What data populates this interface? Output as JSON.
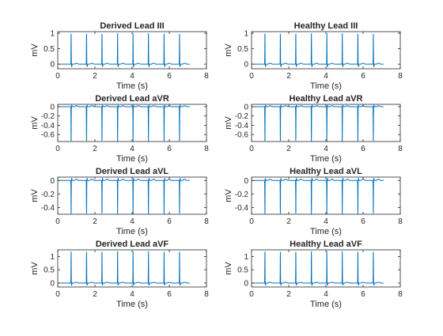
{
  "figure": {
    "line_color": "#0072BD",
    "axis_color": "#262626"
  },
  "chart_data": [
    {
      "type": "line",
      "title": "Derived Lead III",
      "xlabel": "Time (s)",
      "ylabel": "mV",
      "xlim": [
        0,
        8
      ],
      "ylim": [
        -0.15,
        1.05
      ],
      "xticks": [
        "0",
        "2",
        "4",
        "6",
        "8"
      ],
      "yticks": [
        "0",
        "0.5",
        "1"
      ],
      "ytick_values": [
        0,
        0.5,
        1
      ],
      "series": [
        {
          "baseline": 0.0,
          "peak": 1.0,
          "trough": -0.08,
          "beat_times": [
            0.72,
            1.55,
            2.38,
            3.22,
            4.05,
            4.88,
            5.72,
            6.55
          ],
          "duration": 7.1
        }
      ]
    },
    {
      "type": "line",
      "title": "Healthy Lead III",
      "xlabel": "Time (s)",
      "ylabel": "mV",
      "xlim": [
        0,
        8
      ],
      "ylim": [
        -0.15,
        1.05
      ],
      "xticks": [
        "0",
        "2",
        "4",
        "6",
        "8"
      ],
      "yticks": [
        "0",
        "0.5",
        "1"
      ],
      "ytick_values": [
        0,
        0.5,
        1
      ],
      "series": [
        {
          "baseline": 0.0,
          "peak": 1.0,
          "trough": -0.08,
          "beat_times": [
            0.72,
            1.55,
            2.38,
            3.22,
            4.05,
            4.88,
            5.72,
            6.55
          ],
          "duration": 7.1
        }
      ]
    },
    {
      "type": "line",
      "title": "Derived Lead aVR",
      "xlabel": "Time (s)",
      "ylabel": "mV",
      "xlim": [
        0,
        8
      ],
      "ylim": [
        -0.75,
        0.05
      ],
      "xticks": [
        "0",
        "2",
        "4",
        "6",
        "8"
      ],
      "yticks": [
        "0",
        "-0.2",
        "-0.4",
        "-0.6"
      ],
      "ytick_values": [
        0,
        -0.2,
        -0.4,
        -0.6
      ],
      "series": [
        {
          "baseline": 0.0,
          "peak": -0.75,
          "trough": 0.03,
          "beat_times": [
            0.72,
            1.55,
            2.38,
            3.22,
            4.05,
            4.88,
            5.72,
            6.55
          ],
          "duration": 7.1
        }
      ]
    },
    {
      "type": "line",
      "title": "Healthy Lead aVR",
      "xlabel": "Time (s)",
      "ylabel": "mV",
      "xlim": [
        0,
        8
      ],
      "ylim": [
        -0.75,
        0.05
      ],
      "xticks": [
        "0",
        "2",
        "4",
        "6",
        "8"
      ],
      "yticks": [
        "0",
        "-0.2",
        "-0.4",
        "-0.6"
      ],
      "ytick_values": [
        0,
        -0.2,
        -0.4,
        -0.6
      ],
      "series": [
        {
          "baseline": 0.0,
          "peak": -0.75,
          "trough": 0.03,
          "beat_times": [
            0.72,
            1.55,
            2.38,
            3.22,
            4.05,
            4.88,
            5.72,
            6.55
          ],
          "duration": 7.1
        }
      ]
    },
    {
      "type": "line",
      "title": "Derived Lead aVL",
      "xlabel": "Time (s)",
      "ylabel": "mV",
      "xlim": [
        0,
        8
      ],
      "ylim": [
        -0.5,
        0.05
      ],
      "xticks": [
        "0",
        "2",
        "4",
        "6",
        "8"
      ],
      "yticks": [
        "0",
        "-0.2",
        "-0.4"
      ],
      "ytick_values": [
        0,
        -0.2,
        -0.4
      ],
      "series": [
        {
          "baseline": 0.0,
          "peak": -0.5,
          "trough": 0.03,
          "beat_times": [
            0.72,
            1.55,
            2.38,
            3.22,
            4.05,
            4.88,
            5.72,
            6.55
          ],
          "duration": 7.1
        }
      ]
    },
    {
      "type": "line",
      "title": "Healthy Lead aVL",
      "xlabel": "Time (s)",
      "ylabel": "mV",
      "xlim": [
        0,
        8
      ],
      "ylim": [
        -0.5,
        0.05
      ],
      "xticks": [
        "0",
        "2",
        "4",
        "6",
        "8"
      ],
      "yticks": [
        "0",
        "-0.2",
        "-0.4"
      ],
      "ytick_values": [
        0,
        -0.2,
        -0.4
      ],
      "series": [
        {
          "baseline": 0.0,
          "peak": -0.5,
          "trough": 0.03,
          "beat_times": [
            0.72,
            1.55,
            2.38,
            3.22,
            4.05,
            4.88,
            5.72,
            6.55
          ],
          "duration": 7.1
        }
      ]
    },
    {
      "type": "line",
      "title": "Derived Lead aVF",
      "xlabel": "Time (s)",
      "ylabel": "mV",
      "xlim": [
        0,
        8
      ],
      "ylim": [
        -0.15,
        1.25
      ],
      "xticks": [
        "0",
        "2",
        "4",
        "6",
        "8"
      ],
      "yticks": [
        "0",
        "0.5",
        "1"
      ],
      "ytick_values": [
        0,
        0.5,
        1
      ],
      "series": [
        {
          "baseline": 0.0,
          "peak": 1.2,
          "trough": -0.08,
          "beat_times": [
            0.72,
            1.55,
            2.38,
            3.22,
            4.05,
            4.88,
            5.72,
            6.55
          ],
          "duration": 7.1
        }
      ]
    },
    {
      "type": "line",
      "title": "Healthy Lead aVF",
      "xlabel": "Time (s)",
      "ylabel": "mV",
      "xlim": [
        0,
        8
      ],
      "ylim": [
        -0.15,
        1.25
      ],
      "xticks": [
        "0",
        "2",
        "4",
        "6",
        "8"
      ],
      "yticks": [
        "0",
        "0.5",
        "1"
      ],
      "ytick_values": [
        0,
        0.5,
        1
      ],
      "series": [
        {
          "baseline": 0.0,
          "peak": 1.2,
          "trough": -0.08,
          "beat_times": [
            0.72,
            1.55,
            2.38,
            3.22,
            4.05,
            4.88,
            5.72,
            6.55
          ],
          "duration": 7.1
        }
      ]
    }
  ]
}
